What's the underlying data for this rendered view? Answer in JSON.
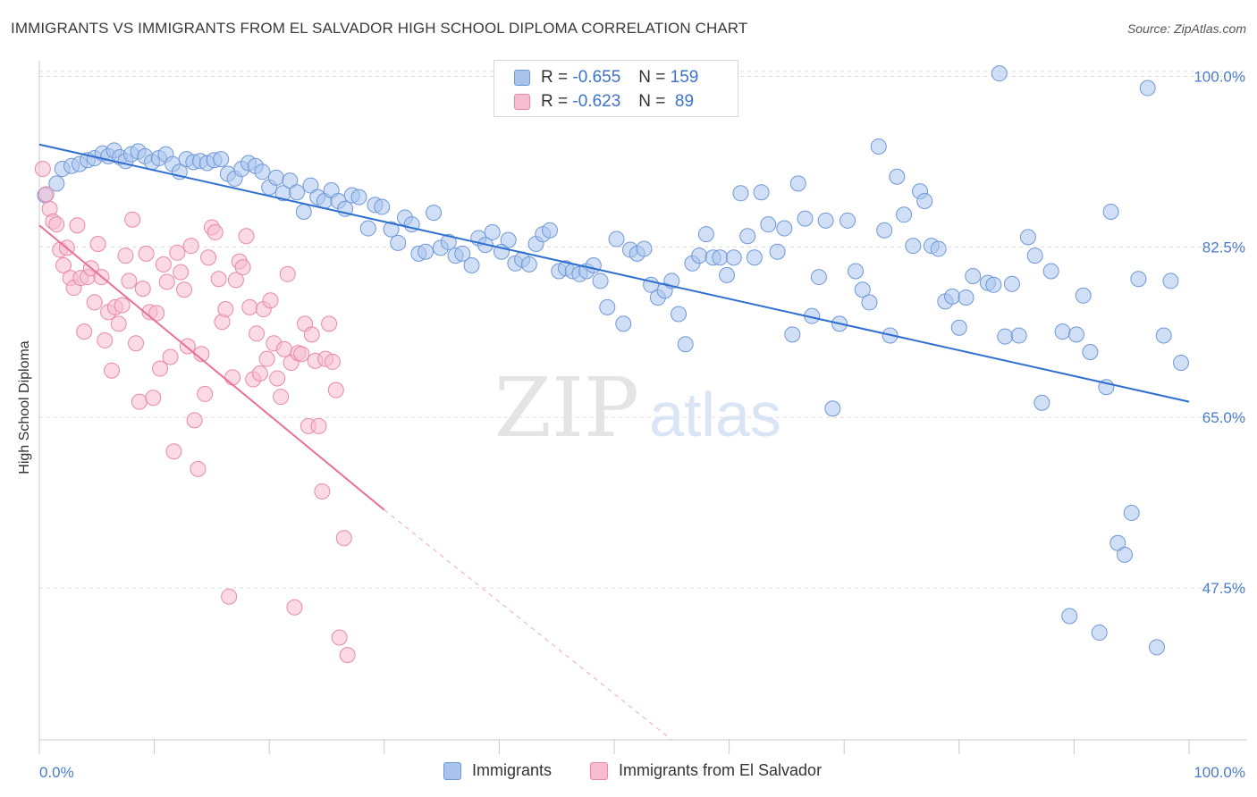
{
  "title": "IMMIGRANTS VS IMMIGRANTS FROM EL SALVADOR HIGH SCHOOL DIPLOMA CORRELATION CHART",
  "source": "Source: ZipAtlas.com",
  "watermark": {
    "zip": "ZIP",
    "atlas": "atlas"
  },
  "legend": {
    "r_label": "R =",
    "n_label": "N =",
    "series": [
      {
        "r": "-0.655",
        "n": "159",
        "color": "#a9c4ec",
        "stroke": "#6f98d8"
      },
      {
        "r": "-0.623",
        "n": " 89",
        "color": "#f7bcd0",
        "stroke": "#e889a8"
      }
    ]
  },
  "bottom_legend": [
    "Immigrants",
    "Immigrants from El Salvador"
  ],
  "chart_data": {
    "type": "scatter",
    "title": "IMMIGRANTS VS IMMIGRANTS FROM EL SALVADOR HIGH SCHOOL DIPLOMA CORRELATION CHART",
    "xlabel": "",
    "ylabel": "High School Diploma",
    "x_tick_labels": [
      "0.0%",
      "100.0%"
    ],
    "y_tick_labels": [
      "100.0%",
      "82.5%",
      "65.0%",
      "47.5%"
    ],
    "y_ticks": [
      100.0,
      82.5,
      65.0,
      47.5
    ],
    "xlim": [
      0,
      100
    ],
    "ylim": [
      31.9,
      101.6
    ],
    "grid": true,
    "legend_position": "top-center",
    "series": [
      {
        "name": "Immigrants",
        "color": "#a9c4ec",
        "stroke": "#6f98d8",
        "trend": {
          "x": [
            0,
            100
          ],
          "y": [
            93.0,
            66.6
          ]
        },
        "points": [
          [
            0.5,
            87.8
          ],
          [
            1.5,
            89.0
          ],
          [
            2.0,
            90.5
          ],
          [
            2.8,
            90.8
          ],
          [
            3.5,
            91.0
          ],
          [
            4.2,
            91.4
          ],
          [
            4.8,
            91.6
          ],
          [
            5.5,
            92.1
          ],
          [
            6.0,
            91.8
          ],
          [
            6.5,
            92.4
          ],
          [
            7.0,
            91.7
          ],
          [
            7.5,
            91.3
          ],
          [
            8.0,
            92.0
          ],
          [
            8.6,
            92.3
          ],
          [
            9.2,
            91.8
          ],
          [
            9.8,
            91.2
          ],
          [
            10.4,
            91.6
          ],
          [
            11.0,
            92.0
          ],
          [
            11.6,
            91.0
          ],
          [
            12.2,
            90.2
          ],
          [
            12.8,
            91.5
          ],
          [
            13.4,
            91.2
          ],
          [
            14.0,
            91.3
          ],
          [
            14.6,
            91.1
          ],
          [
            15.2,
            91.4
          ],
          [
            15.8,
            91.5
          ],
          [
            16.4,
            90.0
          ],
          [
            17.0,
            89.5
          ],
          [
            17.6,
            90.5
          ],
          [
            18.2,
            91.1
          ],
          [
            18.8,
            90.8
          ],
          [
            19.4,
            90.2
          ],
          [
            20.0,
            88.6
          ],
          [
            20.6,
            89.6
          ],
          [
            21.2,
            88.0
          ],
          [
            21.8,
            89.3
          ],
          [
            22.4,
            88.1
          ],
          [
            23.0,
            86.1
          ],
          [
            23.6,
            88.8
          ],
          [
            24.2,
            87.6
          ],
          [
            24.8,
            87.2
          ],
          [
            25.4,
            88.3
          ],
          [
            26.0,
            87.2
          ],
          [
            26.6,
            86.4
          ],
          [
            27.2,
            87.8
          ],
          [
            27.8,
            87.6
          ],
          [
            28.6,
            84.4
          ],
          [
            29.2,
            86.8
          ],
          [
            29.8,
            86.6
          ],
          [
            30.6,
            84.3
          ],
          [
            31.2,
            82.9
          ],
          [
            31.8,
            85.5
          ],
          [
            32.4,
            84.8
          ],
          [
            33.0,
            81.8
          ],
          [
            33.6,
            82.0
          ],
          [
            34.3,
            86.0
          ],
          [
            34.9,
            82.4
          ],
          [
            35.6,
            83.0
          ],
          [
            36.2,
            81.6
          ],
          [
            36.8,
            81.8
          ],
          [
            37.6,
            80.6
          ],
          [
            38.2,
            83.4
          ],
          [
            38.8,
            82.7
          ],
          [
            39.4,
            84.0
          ],
          [
            40.2,
            82.0
          ],
          [
            40.8,
            83.2
          ],
          [
            41.4,
            80.8
          ],
          [
            42.0,
            81.2
          ],
          [
            42.6,
            80.7
          ],
          [
            43.2,
            82.8
          ],
          [
            43.8,
            83.8
          ],
          [
            44.4,
            84.2
          ],
          [
            45.2,
            80.0
          ],
          [
            45.8,
            80.3
          ],
          [
            46.4,
            80.0
          ],
          [
            47.0,
            79.7
          ],
          [
            47.6,
            80.0
          ],
          [
            48.2,
            80.6
          ],
          [
            48.8,
            79.0
          ],
          [
            49.4,
            76.3
          ],
          [
            50.2,
            83.3
          ],
          [
            50.8,
            74.6
          ],
          [
            51.4,
            82.2
          ],
          [
            52.0,
            81.8
          ],
          [
            52.6,
            82.3
          ],
          [
            53.2,
            78.6
          ],
          [
            53.8,
            77.3
          ],
          [
            54.4,
            78.0
          ],
          [
            55.0,
            79.0
          ],
          [
            55.6,
            75.6
          ],
          [
            56.2,
            72.5
          ],
          [
            56.8,
            80.8
          ],
          [
            57.4,
            81.6
          ],
          [
            58.0,
            83.8
          ],
          [
            58.6,
            81.4
          ],
          [
            59.2,
            81.4
          ],
          [
            59.8,
            79.6
          ],
          [
            60.4,
            81.4
          ],
          [
            61.0,
            88.0
          ],
          [
            61.6,
            83.6
          ],
          [
            62.2,
            81.4
          ],
          [
            62.8,
            88.1
          ],
          [
            63.4,
            84.8
          ],
          [
            64.2,
            82.0
          ],
          [
            64.8,
            84.4
          ],
          [
            65.5,
            73.5
          ],
          [
            66.0,
            89.0
          ],
          [
            66.6,
            85.4
          ],
          [
            67.2,
            75.4
          ],
          [
            67.8,
            79.4
          ],
          [
            68.4,
            85.2
          ],
          [
            69.0,
            65.9
          ],
          [
            69.6,
            74.6
          ],
          [
            70.3,
            85.2
          ],
          [
            71.0,
            80.0
          ],
          [
            71.6,
            78.1
          ],
          [
            72.2,
            76.8
          ],
          [
            73.0,
            92.8
          ],
          [
            73.5,
            84.2
          ],
          [
            74.0,
            73.4
          ],
          [
            74.6,
            89.7
          ],
          [
            75.2,
            85.8
          ],
          [
            76.0,
            82.6
          ],
          [
            76.6,
            88.2
          ],
          [
            77.0,
            87.2
          ],
          [
            77.6,
            82.6
          ],
          [
            78.2,
            82.3
          ],
          [
            78.8,
            76.9
          ],
          [
            79.4,
            77.4
          ],
          [
            80.0,
            74.2
          ],
          [
            80.6,
            77.3
          ],
          [
            81.2,
            79.5
          ],
          [
            82.5,
            78.8
          ],
          [
            83.0,
            78.6
          ],
          [
            83.5,
            100.3
          ],
          [
            84.0,
            73.3
          ],
          [
            84.6,
            78.7
          ],
          [
            85.2,
            73.4
          ],
          [
            86.0,
            83.5
          ],
          [
            86.6,
            81.6
          ],
          [
            87.2,
            66.5
          ],
          [
            88.0,
            80.0
          ],
          [
            89.0,
            73.8
          ],
          [
            89.6,
            44.6
          ],
          [
            90.2,
            73.5
          ],
          [
            90.8,
            77.5
          ],
          [
            91.4,
            71.7
          ],
          [
            92.2,
            42.9
          ],
          [
            92.8,
            68.1
          ],
          [
            93.2,
            86.1
          ],
          [
            93.8,
            52.1
          ],
          [
            94.4,
            50.9
          ],
          [
            95.0,
            55.2
          ],
          [
            95.6,
            79.2
          ],
          [
            96.4,
            98.8
          ],
          [
            97.2,
            41.4
          ],
          [
            97.8,
            73.4
          ],
          [
            98.4,
            79.0
          ],
          [
            99.3,
            70.6
          ]
        ]
      },
      {
        "name": "Immigrants from El Salvador",
        "color": "#f7bcd0",
        "stroke": "#e889a8",
        "trend": {
          "x": [
            0,
            30
          ],
          "y": [
            84.7,
            55.5
          ]
        },
        "trend_dashed": {
          "x": [
            30,
            55
          ],
          "y": [
            55.5,
            31.9
          ]
        },
        "points": [
          [
            0.3,
            90.5
          ],
          [
            0.6,
            87.9
          ],
          [
            0.9,
            86.4
          ],
          [
            1.2,
            85.1
          ],
          [
            1.5,
            84.8
          ],
          [
            1.8,
            82.2
          ],
          [
            2.1,
            80.6
          ],
          [
            2.4,
            82.4
          ],
          [
            2.7,
            79.3
          ],
          [
            3.0,
            78.3
          ],
          [
            3.3,
            84.7
          ],
          [
            3.6,
            79.3
          ],
          [
            3.9,
            73.8
          ],
          [
            4.2,
            79.4
          ],
          [
            4.5,
            80.3
          ],
          [
            4.8,
            76.8
          ],
          [
            5.1,
            82.8
          ],
          [
            5.4,
            79.4
          ],
          [
            5.7,
            72.9
          ],
          [
            6.0,
            75.8
          ],
          [
            6.3,
            69.8
          ],
          [
            6.6,
            76.3
          ],
          [
            6.9,
            74.6
          ],
          [
            7.2,
            76.5
          ],
          [
            7.5,
            81.6
          ],
          [
            7.8,
            79.0
          ],
          [
            8.1,
            85.3
          ],
          [
            8.4,
            72.6
          ],
          [
            8.7,
            66.6
          ],
          [
            9.0,
            78.2
          ],
          [
            9.3,
            81.8
          ],
          [
            9.6,
            75.8
          ],
          [
            9.9,
            67.0
          ],
          [
            10.2,
            75.7
          ],
          [
            10.5,
            70.0
          ],
          [
            10.8,
            80.7
          ],
          [
            11.1,
            78.9
          ],
          [
            11.4,
            71.2
          ],
          [
            11.7,
            61.5
          ],
          [
            12.0,
            81.9
          ],
          [
            12.3,
            79.9
          ],
          [
            12.6,
            78.1
          ],
          [
            12.9,
            72.3
          ],
          [
            13.2,
            82.6
          ],
          [
            13.5,
            64.7
          ],
          [
            13.8,
            59.7
          ],
          [
            14.1,
            71.5
          ],
          [
            14.4,
            67.4
          ],
          [
            14.7,
            81.4
          ],
          [
            15.0,
            84.5
          ],
          [
            15.3,
            84.0
          ],
          [
            15.6,
            79.2
          ],
          [
            15.9,
            74.8
          ],
          [
            16.2,
            76.1
          ],
          [
            16.5,
            46.6
          ],
          [
            16.8,
            69.1
          ],
          [
            17.1,
            79.1
          ],
          [
            17.4,
            81.0
          ],
          [
            17.7,
            80.4
          ],
          [
            18.0,
            83.6
          ],
          [
            18.3,
            76.3
          ],
          [
            18.6,
            68.9
          ],
          [
            18.9,
            73.6
          ],
          [
            19.2,
            69.5
          ],
          [
            19.5,
            76.1
          ],
          [
            19.8,
            71.0
          ],
          [
            20.1,
            77.0
          ],
          [
            20.4,
            72.6
          ],
          [
            20.7,
            69.0
          ],
          [
            21.0,
            67.1
          ],
          [
            21.3,
            72.0
          ],
          [
            21.6,
            79.7
          ],
          [
            21.9,
            70.6
          ],
          [
            22.2,
            45.5
          ],
          [
            22.5,
            71.6
          ],
          [
            22.8,
            71.5
          ],
          [
            23.1,
            74.6
          ],
          [
            23.4,
            64.1
          ],
          [
            23.7,
            73.5
          ],
          [
            24.0,
            70.8
          ],
          [
            24.3,
            64.1
          ],
          [
            24.6,
            57.4
          ],
          [
            24.9,
            71.0
          ],
          [
            25.2,
            74.6
          ],
          [
            25.5,
            70.7
          ],
          [
            25.8,
            67.8
          ],
          [
            26.1,
            42.4
          ],
          [
            26.5,
            52.6
          ],
          [
            26.8,
            40.6
          ]
        ]
      }
    ]
  }
}
